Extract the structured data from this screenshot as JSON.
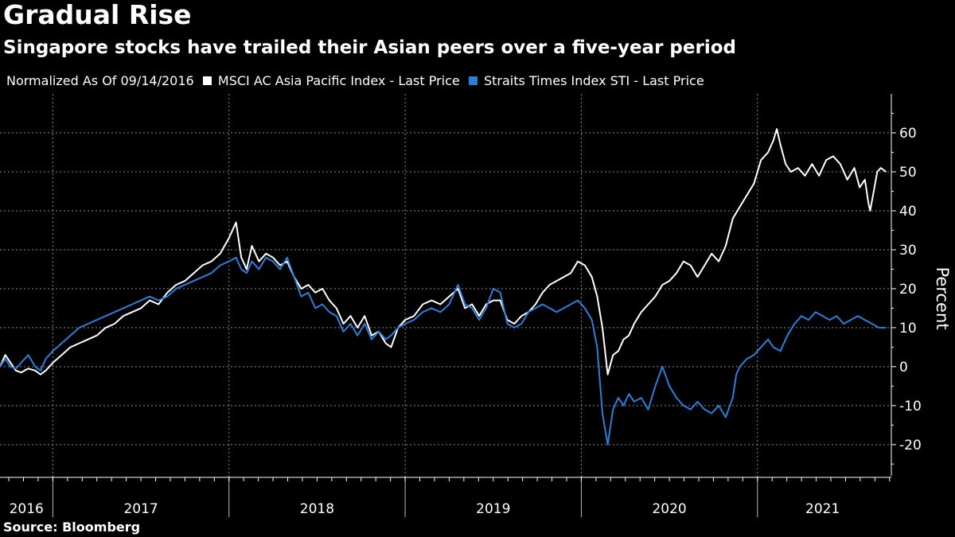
{
  "header": {
    "title": "Gradual Rise",
    "subtitle": "Singapore stocks have trailed their Asian peers over a five-year period"
  },
  "legend": {
    "note": "Normalized As Of 09/14/2016",
    "items": [
      {
        "label": "MSCI AC Asia Pacific Index - Last Price",
        "color": "#ffffff"
      },
      {
        "label": "Straits Times Index STI - Last Price",
        "color": "#2b7fd6"
      }
    ]
  },
  "footer": {
    "source": "Source: Bloomberg"
  },
  "chart_data": {
    "type": "line",
    "ylabel": "Percent",
    "ylim": [
      -28,
      70
    ],
    "yticks": [
      -20,
      -10,
      0,
      10,
      20,
      30,
      40,
      50,
      60
    ],
    "xlim": [
      2016.7,
      2021.76
    ],
    "year_labels": [
      {
        "label": "2016",
        "x": 2016.85
      },
      {
        "label": "2017",
        "x": 2017.5
      },
      {
        "label": "2018",
        "x": 2018.5
      },
      {
        "label": "2019",
        "x": 2019.5
      },
      {
        "label": "2020",
        "x": 2020.5
      },
      {
        "label": "2021",
        "x": 2021.37
      }
    ],
    "year_boundaries": [
      2017,
      2018,
      2019,
      2020,
      2021
    ],
    "grid": true,
    "series": [
      {
        "name": "MSCI AC Asia Pacific Index - Last Price",
        "color": "#ffffff",
        "points": [
          [
            2016.7,
            0
          ],
          [
            2016.73,
            3
          ],
          [
            2016.76,
            1
          ],
          [
            2016.79,
            -1
          ],
          [
            2016.82,
            -1.5
          ],
          [
            2016.86,
            -0.5
          ],
          [
            2016.9,
            -1
          ],
          [
            2016.93,
            -2
          ],
          [
            2016.96,
            -1
          ],
          [
            2017.0,
            1
          ],
          [
            2017.05,
            3
          ],
          [
            2017.1,
            5
          ],
          [
            2017.15,
            6
          ],
          [
            2017.2,
            7
          ],
          [
            2017.25,
            8
          ],
          [
            2017.3,
            10
          ],
          [
            2017.35,
            11
          ],
          [
            2017.4,
            13
          ],
          [
            2017.45,
            14
          ],
          [
            2017.5,
            15
          ],
          [
            2017.55,
            17
          ],
          [
            2017.6,
            16
          ],
          [
            2017.65,
            19
          ],
          [
            2017.7,
            21
          ],
          [
            2017.75,
            22
          ],
          [
            2017.8,
            24
          ],
          [
            2017.85,
            26
          ],
          [
            2017.9,
            27
          ],
          [
            2017.95,
            29
          ],
          [
            2018.0,
            33
          ],
          [
            2018.04,
            37
          ],
          [
            2018.07,
            28
          ],
          [
            2018.1,
            25
          ],
          [
            2018.13,
            31
          ],
          [
            2018.17,
            27
          ],
          [
            2018.21,
            29
          ],
          [
            2018.25,
            28
          ],
          [
            2018.29,
            26
          ],
          [
            2018.33,
            27
          ],
          [
            2018.37,
            23
          ],
          [
            2018.41,
            20
          ],
          [
            2018.45,
            21
          ],
          [
            2018.49,
            19
          ],
          [
            2018.53,
            20
          ],
          [
            2018.57,
            17
          ],
          [
            2018.61,
            15
          ],
          [
            2018.65,
            11
          ],
          [
            2018.69,
            13
          ],
          [
            2018.73,
            10
          ],
          [
            2018.77,
            13
          ],
          [
            2018.81,
            8
          ],
          [
            2018.85,
            9
          ],
          [
            2018.89,
            6
          ],
          [
            2018.92,
            5
          ],
          [
            2018.96,
            10
          ],
          [
            2019.0,
            12
          ],
          [
            2019.05,
            13
          ],
          [
            2019.1,
            16
          ],
          [
            2019.15,
            17
          ],
          [
            2019.2,
            16
          ],
          [
            2019.25,
            18
          ],
          [
            2019.3,
            20
          ],
          [
            2019.34,
            15
          ],
          [
            2019.38,
            16
          ],
          [
            2019.42,
            13
          ],
          [
            2019.46,
            16
          ],
          [
            2019.5,
            17
          ],
          [
            2019.54,
            17
          ],
          [
            2019.58,
            12
          ],
          [
            2019.62,
            11
          ],
          [
            2019.66,
            13
          ],
          [
            2019.7,
            14
          ],
          [
            2019.74,
            16
          ],
          [
            2019.78,
            19
          ],
          [
            2019.82,
            21
          ],
          [
            2019.86,
            22
          ],
          [
            2019.9,
            23
          ],
          [
            2019.94,
            24
          ],
          [
            2019.98,
            27
          ],
          [
            2020.02,
            26
          ],
          [
            2020.06,
            23
          ],
          [
            2020.09,
            18
          ],
          [
            2020.12,
            10
          ],
          [
            2020.15,
            -2
          ],
          [
            2020.18,
            3
          ],
          [
            2020.21,
            4
          ],
          [
            2020.24,
            7
          ],
          [
            2020.27,
            8
          ],
          [
            2020.3,
            11
          ],
          [
            2020.34,
            14
          ],
          [
            2020.38,
            16
          ],
          [
            2020.42,
            18
          ],
          [
            2020.46,
            21
          ],
          [
            2020.5,
            22
          ],
          [
            2020.54,
            24
          ],
          [
            2020.58,
            27
          ],
          [
            2020.62,
            26
          ],
          [
            2020.66,
            23
          ],
          [
            2020.7,
            26
          ],
          [
            2020.74,
            29
          ],
          [
            2020.78,
            27
          ],
          [
            2020.82,
            31
          ],
          [
            2020.86,
            38
          ],
          [
            2020.9,
            41
          ],
          [
            2020.94,
            44
          ],
          [
            2020.98,
            47
          ],
          [
            2021.02,
            53
          ],
          [
            2021.06,
            55
          ],
          [
            2021.09,
            58
          ],
          [
            2021.11,
            61
          ],
          [
            2021.13,
            57
          ],
          [
            2021.16,
            52
          ],
          [
            2021.19,
            50
          ],
          [
            2021.23,
            51
          ],
          [
            2021.27,
            49
          ],
          [
            2021.31,
            52
          ],
          [
            2021.35,
            49
          ],
          [
            2021.39,
            53
          ],
          [
            2021.43,
            54
          ],
          [
            2021.47,
            52
          ],
          [
            2021.51,
            48
          ],
          [
            2021.55,
            51
          ],
          [
            2021.58,
            46
          ],
          [
            2021.61,
            48
          ],
          [
            2021.63,
            42
          ],
          [
            2021.64,
            40
          ],
          [
            2021.66,
            45
          ],
          [
            2021.68,
            50
          ],
          [
            2021.7,
            51
          ],
          [
            2021.73,
            50
          ]
        ]
      },
      {
        "name": "Straits Times Index STI - Last Price",
        "color": "#2b7fd6",
        "points": [
          [
            2016.7,
            0
          ],
          [
            2016.73,
            2
          ],
          [
            2016.76,
            0
          ],
          [
            2016.79,
            -0.5
          ],
          [
            2016.82,
            1
          ],
          [
            2016.86,
            3
          ],
          [
            2016.9,
            0
          ],
          [
            2016.93,
            -1
          ],
          [
            2016.96,
            2
          ],
          [
            2017.0,
            4
          ],
          [
            2017.05,
            6
          ],
          [
            2017.1,
            8
          ],
          [
            2017.15,
            10
          ],
          [
            2017.2,
            11
          ],
          [
            2017.25,
            12
          ],
          [
            2017.3,
            13
          ],
          [
            2017.35,
            14
          ],
          [
            2017.4,
            15
          ],
          [
            2017.45,
            16
          ],
          [
            2017.5,
            17
          ],
          [
            2017.55,
            18
          ],
          [
            2017.6,
            17
          ],
          [
            2017.65,
            18
          ],
          [
            2017.7,
            20
          ],
          [
            2017.75,
            21
          ],
          [
            2017.8,
            22
          ],
          [
            2017.85,
            23
          ],
          [
            2017.9,
            24
          ],
          [
            2017.95,
            26
          ],
          [
            2018.0,
            27
          ],
          [
            2018.04,
            28
          ],
          [
            2018.07,
            25
          ],
          [
            2018.1,
            24
          ],
          [
            2018.13,
            27
          ],
          [
            2018.17,
            25
          ],
          [
            2018.21,
            28
          ],
          [
            2018.25,
            27
          ],
          [
            2018.29,
            25
          ],
          [
            2018.33,
            28
          ],
          [
            2018.37,
            23
          ],
          [
            2018.41,
            18
          ],
          [
            2018.45,
            19
          ],
          [
            2018.49,
            15
          ],
          [
            2018.53,
            16
          ],
          [
            2018.57,
            14
          ],
          [
            2018.61,
            13
          ],
          [
            2018.65,
            9
          ],
          [
            2018.69,
            11
          ],
          [
            2018.73,
            8
          ],
          [
            2018.77,
            11
          ],
          [
            2018.81,
            7
          ],
          [
            2018.85,
            9
          ],
          [
            2018.89,
            7
          ],
          [
            2018.92,
            8
          ],
          [
            2018.96,
            10
          ],
          [
            2019.0,
            11
          ],
          [
            2019.05,
            12
          ],
          [
            2019.1,
            14
          ],
          [
            2019.15,
            15
          ],
          [
            2019.2,
            14
          ],
          [
            2019.25,
            16
          ],
          [
            2019.3,
            21
          ],
          [
            2019.34,
            16
          ],
          [
            2019.38,
            15
          ],
          [
            2019.42,
            12
          ],
          [
            2019.46,
            15
          ],
          [
            2019.5,
            20
          ],
          [
            2019.54,
            19
          ],
          [
            2019.58,
            11
          ],
          [
            2019.62,
            10
          ],
          [
            2019.66,
            11
          ],
          [
            2019.7,
            14
          ],
          [
            2019.74,
            15
          ],
          [
            2019.78,
            16
          ],
          [
            2019.82,
            15
          ],
          [
            2019.86,
            14
          ],
          [
            2019.9,
            15
          ],
          [
            2019.94,
            16
          ],
          [
            2019.98,
            17
          ],
          [
            2020.02,
            15
          ],
          [
            2020.06,
            12
          ],
          [
            2020.09,
            5
          ],
          [
            2020.12,
            -12
          ],
          [
            2020.15,
            -20
          ],
          [
            2020.18,
            -11
          ],
          [
            2020.21,
            -8
          ],
          [
            2020.24,
            -10
          ],
          [
            2020.27,
            -7
          ],
          [
            2020.3,
            -9
          ],
          [
            2020.34,
            -8
          ],
          [
            2020.38,
            -11
          ],
          [
            2020.42,
            -5
          ],
          [
            2020.46,
            0
          ],
          [
            2020.5,
            -5
          ],
          [
            2020.54,
            -8
          ],
          [
            2020.58,
            -10
          ],
          [
            2020.62,
            -11
          ],
          [
            2020.66,
            -9
          ],
          [
            2020.7,
            -11
          ],
          [
            2020.74,
            -12
          ],
          [
            2020.78,
            -10
          ],
          [
            2020.82,
            -13
          ],
          [
            2020.86,
            -8
          ],
          [
            2020.88,
            -2
          ],
          [
            2020.9,
            0
          ],
          [
            2020.94,
            2
          ],
          [
            2020.98,
            3
          ],
          [
            2021.02,
            5
          ],
          [
            2021.06,
            7
          ],
          [
            2021.09,
            5
          ],
          [
            2021.13,
            4
          ],
          [
            2021.17,
            8
          ],
          [
            2021.21,
            11
          ],
          [
            2021.25,
            13
          ],
          [
            2021.29,
            12
          ],
          [
            2021.33,
            14
          ],
          [
            2021.37,
            13
          ],
          [
            2021.41,
            12
          ],
          [
            2021.45,
            13
          ],
          [
            2021.49,
            11
          ],
          [
            2021.53,
            12
          ],
          [
            2021.57,
            13
          ],
          [
            2021.61,
            12
          ],
          [
            2021.65,
            11
          ],
          [
            2021.69,
            10
          ],
          [
            2021.73,
            10
          ]
        ]
      }
    ]
  }
}
